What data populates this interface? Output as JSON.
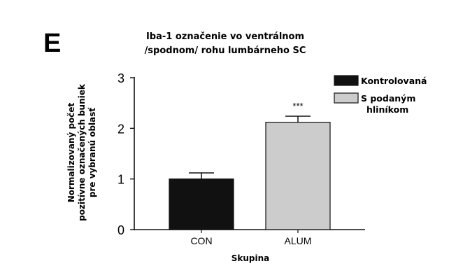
{
  "panel_label": "E",
  "chart_data": {
    "type": "bar",
    "title": [
      "Iba-1 označenie vo ventrálnom",
      "/spodnom/ rohu lumbárneho SC"
    ],
    "xlabel": "Skupina",
    "ylabel": [
      "Normalizovaný počet",
      "pozitívne označených buniek",
      "pre vybranú oblasť"
    ],
    "categories": [
      "CON",
      "ALUM"
    ],
    "values": [
      1.0,
      2.12
    ],
    "errors": [
      0.12,
      0.12
    ],
    "significance": [
      "",
      "***"
    ],
    "bar_colors": [
      "#111111",
      "#cccccc"
    ],
    "ylim": [
      0,
      3
    ],
    "yticks": [
      0,
      1,
      2,
      3
    ],
    "grid": false,
    "legend_position": "top-right",
    "legend": [
      {
        "label": [
          "Kontrolovaná"
        ],
        "color": "#111111"
      },
      {
        "label": [
          "S podaným",
          "hliníkom"
        ],
        "color": "#cccccc"
      }
    ]
  }
}
